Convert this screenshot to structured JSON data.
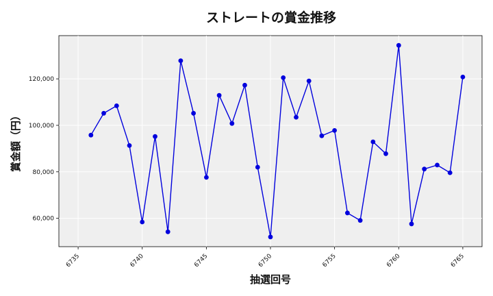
{
  "chart_data": {
    "type": "line",
    "title": "ストレートの賞金推移",
    "xlabel": "抽選回号",
    "ylabel": "賞金額（円）",
    "x": [
      6736,
      6737,
      6738,
      6739,
      6740,
      6741,
      6742,
      6743,
      6744,
      6745,
      6746,
      6747,
      6748,
      6749,
      6750,
      6751,
      6752,
      6753,
      6754,
      6755,
      6756,
      6757,
      6758,
      6759,
      6760,
      6761,
      6762,
      6763,
      6764,
      6765
    ],
    "series": [
      {
        "values": [
          95800,
          105200,
          108400,
          91300,
          58400,
          95200,
          54200,
          127800,
          105200,
          77600,
          112900,
          100800,
          117300,
          82000,
          52000,
          120500,
          103500,
          119100,
          95500,
          97800,
          62300,
          59100,
          92900,
          87800,
          134400,
          57600,
          81200,
          82900,
          79600,
          120800
        ]
      }
    ],
    "xticks": [
      6735,
      6740,
      6745,
      6750,
      6755,
      6760,
      6765
    ],
    "yticks": [
      60000,
      80000,
      100000,
      120000
    ],
    "ytick_labels": [
      "60,000",
      "80,000",
      "100,000",
      "120,000"
    ],
    "xlim": [
      6733.5,
      6766.5
    ],
    "ylim": [
      47800,
      138600
    ],
    "grid": true,
    "colors": {
      "line": "#0000dd",
      "marker": "#0000dd",
      "plot_bg": "#efefef",
      "grid": "#ffffff"
    }
  }
}
